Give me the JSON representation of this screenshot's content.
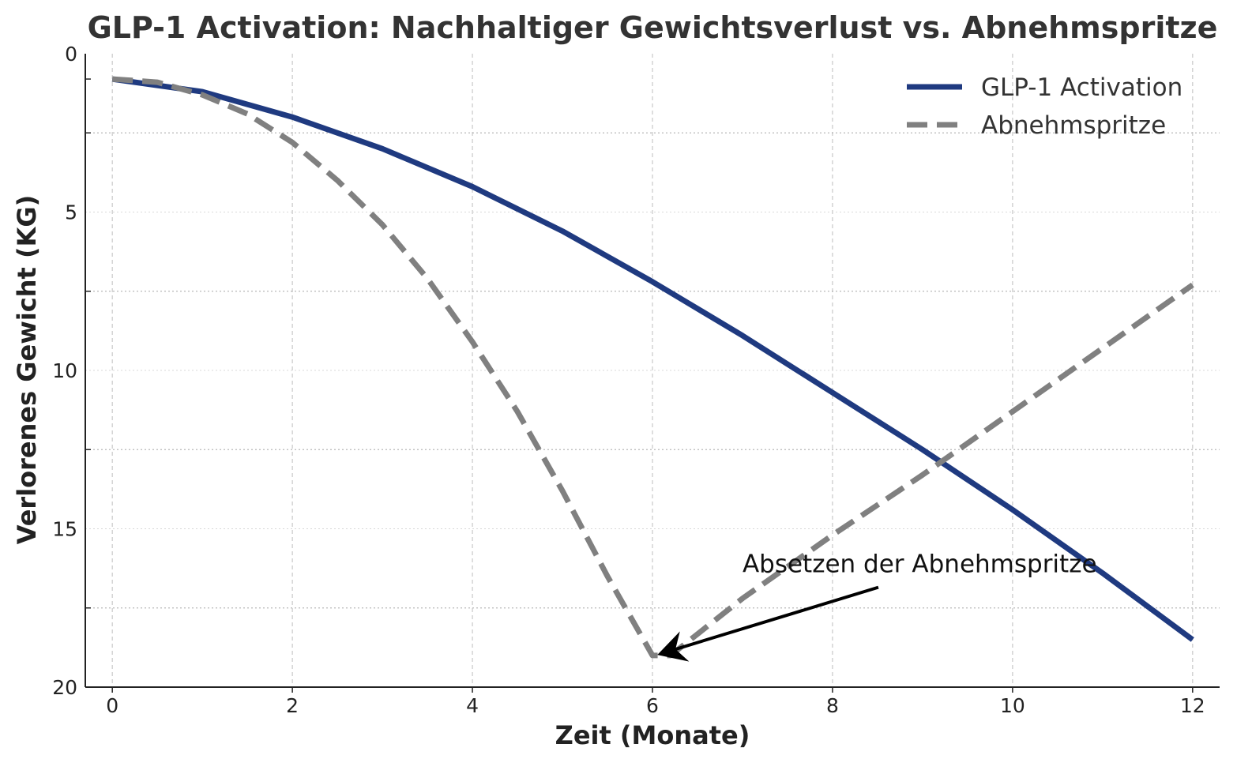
{
  "chart_data": {
    "type": "line",
    "title": "GLP-1 Activation: Nachhaltiger Gewichtsverlust vs. Abnehmspritze",
    "xlabel": "Zeit (Monate)",
    "ylabel": "Verlorenes Gewicht (KG)",
    "xlim": [
      -0.3,
      12.3
    ],
    "ylim": [
      0,
      20
    ],
    "y_inverted": true,
    "x_ticks": [
      0,
      2,
      4,
      6,
      8,
      10,
      12
    ],
    "x_tick_labels": [
      "0",
      "2",
      "4",
      "6",
      "8",
      "10",
      "12"
    ],
    "y_ticks_major": [
      0,
      5,
      10,
      15,
      20
    ],
    "y_tick_labels": [
      "0",
      "5",
      "10",
      "15",
      "20"
    ],
    "y_ticks_minor": [
      2.5,
      7.5,
      12.5,
      17.5
    ],
    "grid": true,
    "legend_position": "top-right",
    "series": [
      {
        "name": "GLP-1 Activation",
        "color": "#1f3a80",
        "style": "solid",
        "x": [
          0,
          1,
          2,
          3,
          4,
          5,
          6,
          7,
          8,
          9,
          10,
          11,
          12
        ],
        "y": [
          0.8,
          1.2,
          2.0,
          3.0,
          4.2,
          5.6,
          7.2,
          8.9,
          10.7,
          12.5,
          14.4,
          16.4,
          18.5
        ]
      },
      {
        "name": "Abnehmspritze",
        "color": "#808080",
        "style": "dashed",
        "x": [
          0,
          0.5,
          1,
          1.5,
          2,
          2.5,
          3,
          3.5,
          4,
          4.5,
          5,
          5.5,
          6,
          6.2,
          7,
          8,
          9,
          10,
          11,
          12
        ],
        "y": [
          0.8,
          0.9,
          1.3,
          1.9,
          2.8,
          4.0,
          5.4,
          7.1,
          9.1,
          11.3,
          13.8,
          16.5,
          19.0,
          19.0,
          17.2,
          15.2,
          13.3,
          11.3,
          9.3,
          7.3
        ]
      }
    ],
    "annotations": [
      {
        "text": "Absetzen der Abnehmspritze",
        "text_x": 7.0,
        "text_y": 16.3,
        "arrow_to_x": 6.0,
        "arrow_to_y": 19.0
      }
    ]
  }
}
